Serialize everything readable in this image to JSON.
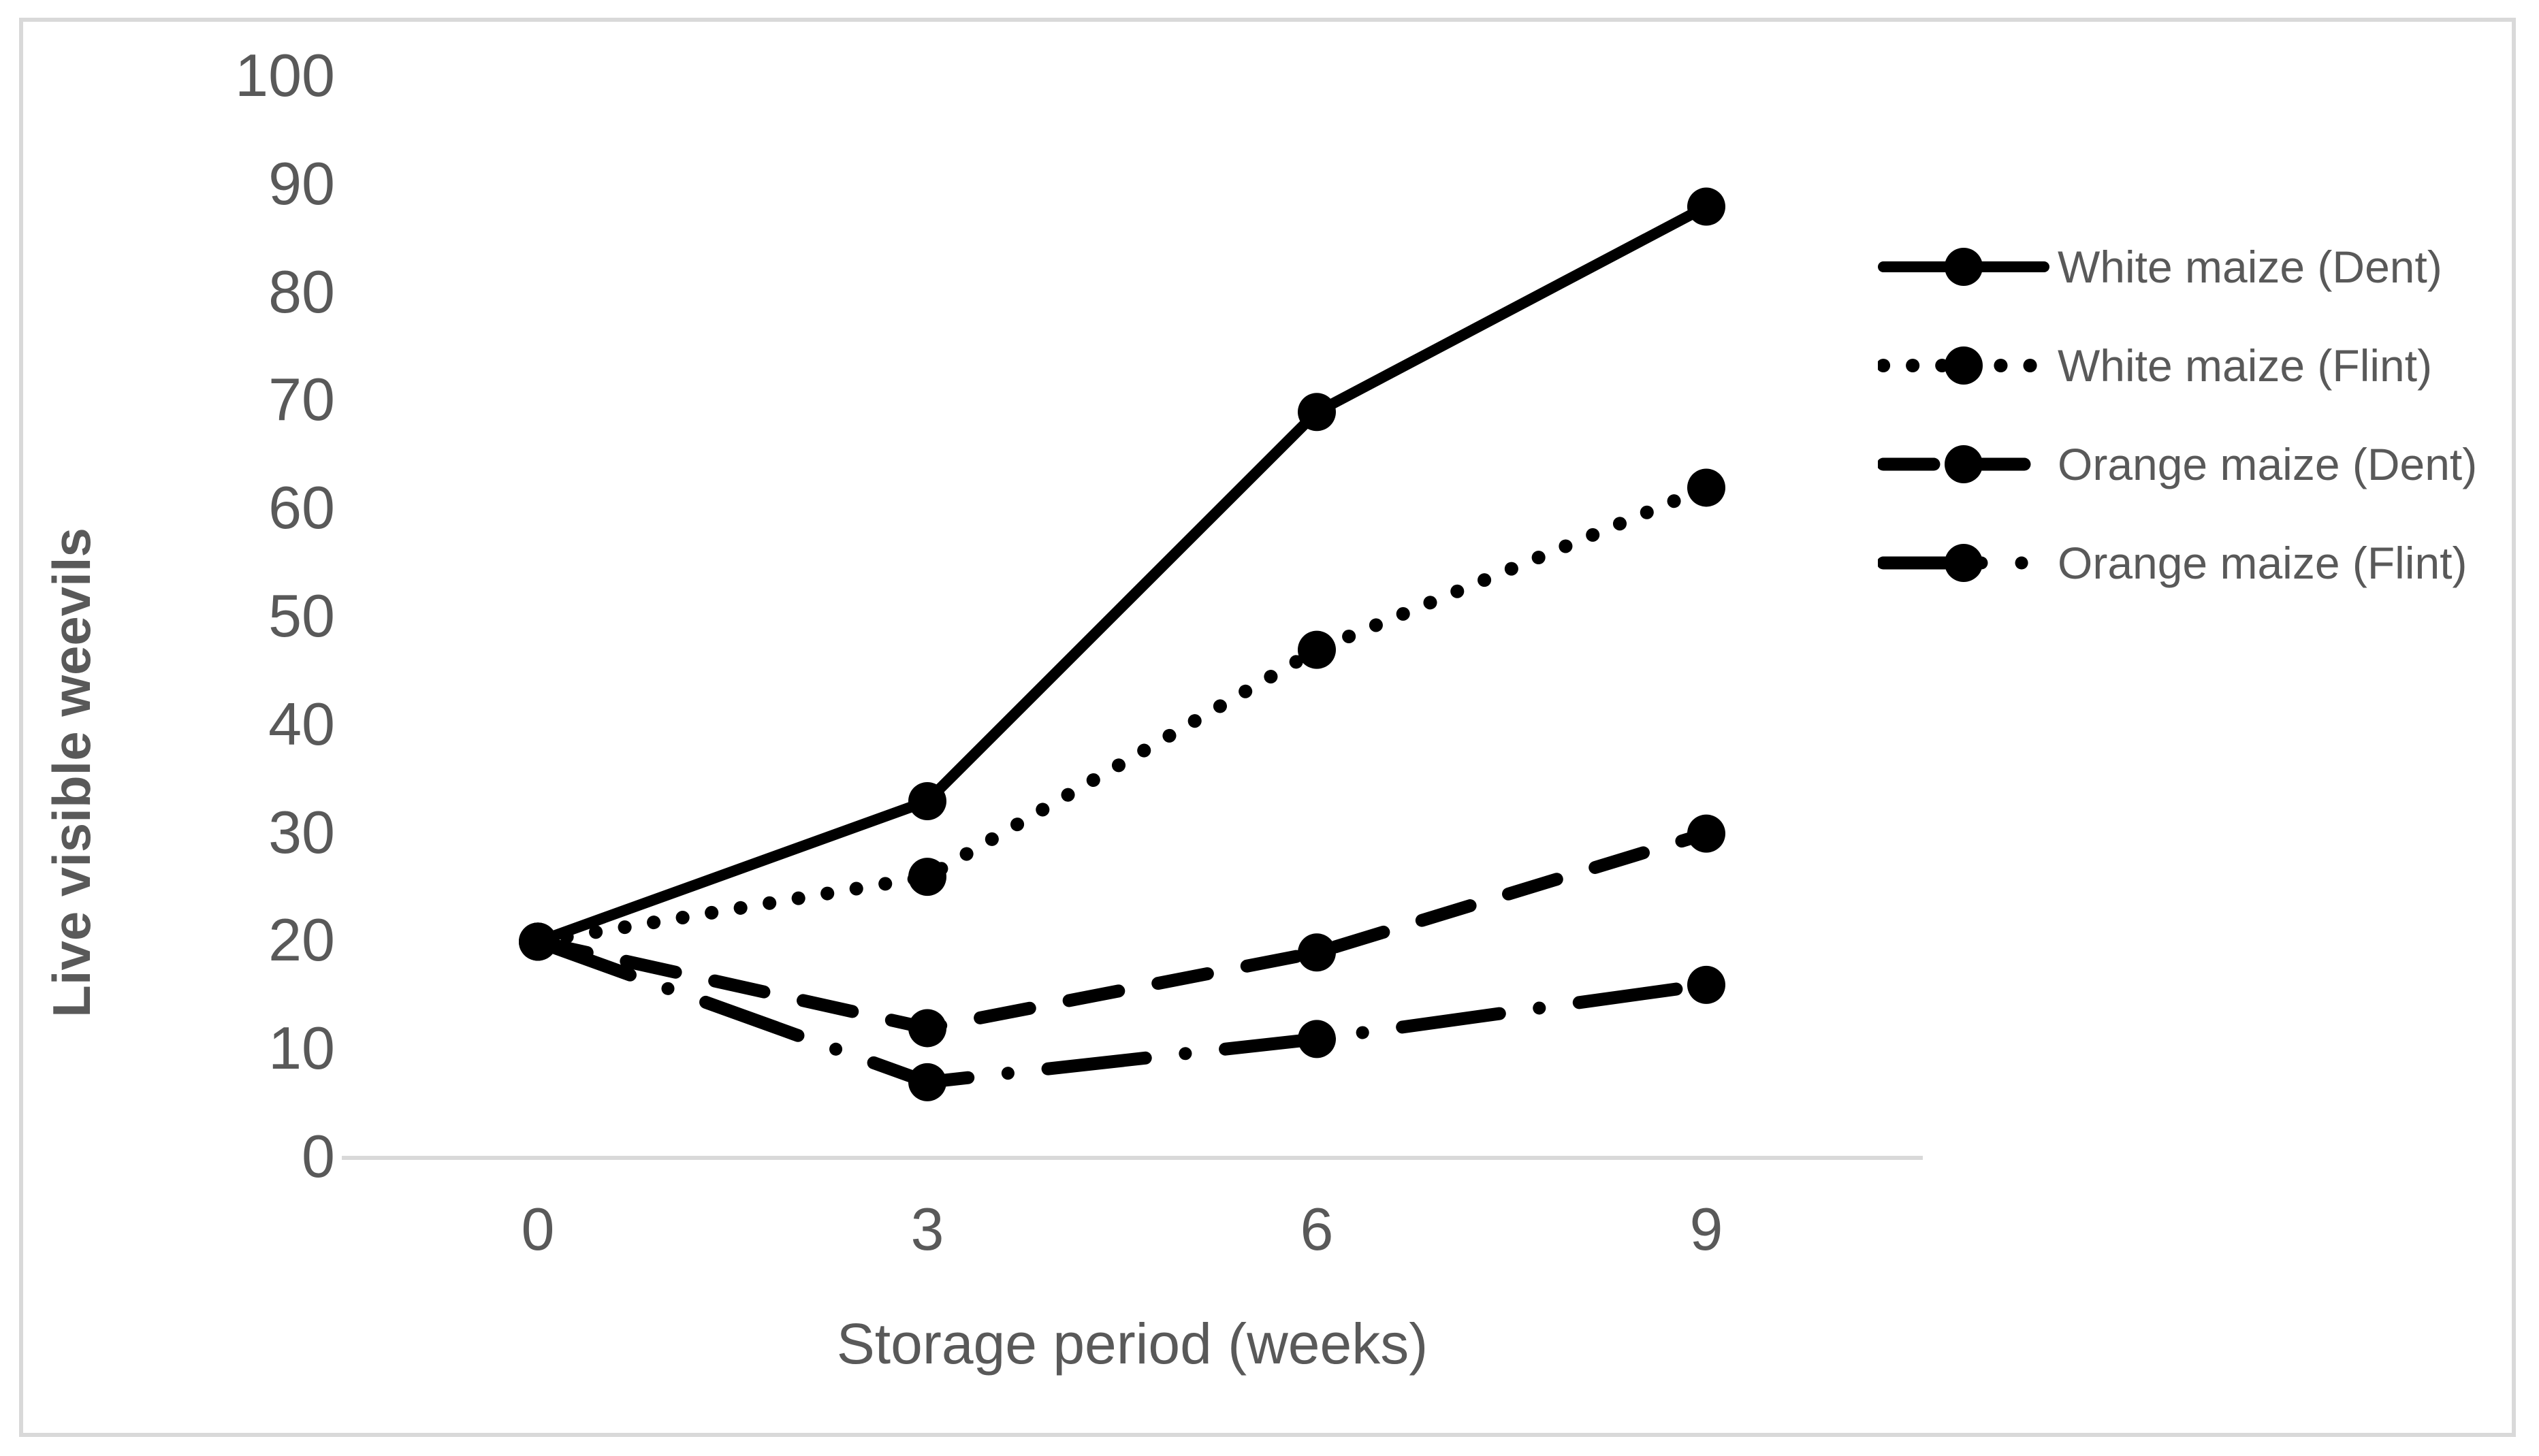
{
  "chart_data": {
    "type": "line",
    "title": "",
    "xlabel": "Storage period (weeks)",
    "ylabel": "Live visible weevils",
    "categories": [
      "0",
      "3",
      "6",
      "9"
    ],
    "ylim": [
      0,
      100
    ],
    "y_tick_step": 10,
    "y_tick_labels": [
      "0",
      "10",
      "20",
      "30",
      "40",
      "50",
      "60",
      "70",
      "80",
      "90",
      "100"
    ],
    "grid": "off",
    "legend_position": "right",
    "series": [
      {
        "name": "White maize (Dent)",
        "line_style": "solid",
        "marker": "filled-circle",
        "values": [
          20,
          33,
          69,
          88
        ]
      },
      {
        "name": "White maize (Flint)",
        "line_style": "dotted",
        "marker": "filled-circle",
        "values": [
          20,
          26,
          47,
          62
        ]
      },
      {
        "name": "Orange maize (Dent)",
        "line_style": "dashed",
        "marker": "filled-circle",
        "values": [
          20,
          12,
          19,
          30
        ]
      },
      {
        "name": "Orange maize (Flint)",
        "line_style": "dash-dot",
        "marker": "filled-circle",
        "values": [
          20,
          7,
          11,
          16
        ]
      }
    ],
    "colors": {
      "series_line": "#000000",
      "text": "#595959",
      "axis_line": "#d9d9d9",
      "figure_border": "#d9d9d9",
      "background": "#ffffff"
    }
  }
}
